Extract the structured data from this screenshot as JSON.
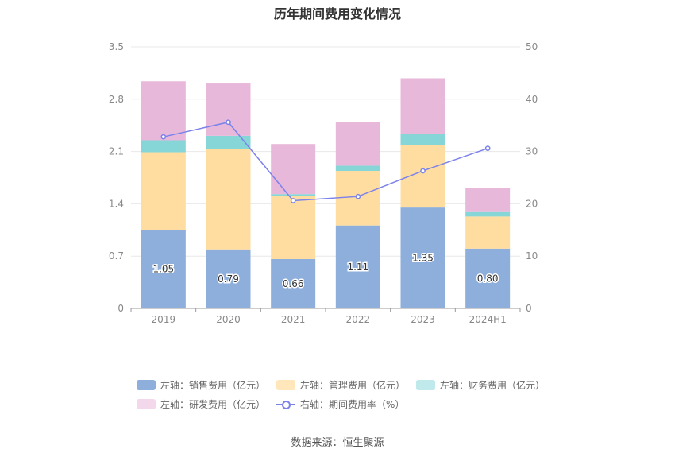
{
  "title": "历年期间费用变化情况",
  "source": "数据来源：恒生聚源",
  "colors": {
    "sales": "#8eaedc",
    "admin": "#ffdda0",
    "finance": "#86d6d8",
    "rd": "#e8b8da",
    "rate": "#7b82ea"
  },
  "legend": [
    {
      "label": "左轴：销售费用（亿元）",
      "color": "#8eaedc",
      "kind": "box"
    },
    {
      "label": "左轴：管理费用（亿元）",
      "color": "#ffe6bb",
      "kind": "box"
    },
    {
      "label": "左轴：财务费用（亿元）",
      "color": "#bfe9ea",
      "kind": "box"
    },
    {
      "label": "左轴：研发费用（亿元）",
      "color": "#f3d7ea",
      "kind": "box"
    },
    {
      "label": "右轴：期间费用率（%）",
      "color": "#7b82ea",
      "kind": "line"
    }
  ],
  "chart_data": {
    "type": "bar",
    "stacked": true,
    "categories": [
      "2019",
      "2020",
      "2021",
      "2022",
      "2023",
      "2024H1"
    ],
    "left_axis": {
      "ylim": [
        0,
        3.5
      ],
      "ticks": [
        "0",
        "0.7",
        "1.4",
        "2.1",
        "2.8",
        "3.5"
      ]
    },
    "right_axis": {
      "ylim": [
        0,
        50
      ],
      "ticks": [
        "0",
        "10",
        "20",
        "30",
        "40",
        "50"
      ]
    },
    "grid": true,
    "legend_position": "bottom",
    "series": [
      {
        "name": "左轴：销售费用（亿元）",
        "axis": "left",
        "type": "bar",
        "color": "#8eaedc",
        "values": [
          1.05,
          0.79,
          0.66,
          1.11,
          1.35,
          0.8
        ],
        "labels": [
          "1.05",
          "0.79",
          "0.66",
          "1.11",
          "1.35",
          "0.80"
        ]
      },
      {
        "name": "左轴：管理费用（亿元）",
        "axis": "left",
        "type": "bar",
        "color": "#ffdda0",
        "values": [
          1.04,
          1.34,
          0.84,
          0.73,
          0.84,
          0.43
        ]
      },
      {
        "name": "左轴：财务费用（亿元）",
        "axis": "left",
        "type": "bar",
        "color": "#86d6d8",
        "values": [
          0.16,
          0.18,
          0.03,
          0.07,
          0.14,
          0.06
        ]
      },
      {
        "name": "左轴：研发费用（亿元）",
        "axis": "left",
        "type": "bar",
        "color": "#e8b8da",
        "values": [
          0.79,
          0.7,
          0.67,
          0.59,
          0.75,
          0.32
        ]
      },
      {
        "name": "右轴：期间费用率（%）",
        "axis": "right",
        "type": "line",
        "color": "#7b82ea",
        "values": [
          32.8,
          35.6,
          20.6,
          21.4,
          26.3,
          30.6
        ]
      }
    ]
  }
}
